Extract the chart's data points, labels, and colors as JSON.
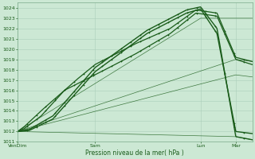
{
  "xlabel": "Pression niveau de la mer( hPa )",
  "ylim": [
    1011,
    1024.5
  ],
  "xtick_labels": [
    "VenDim",
    "Sam",
    "Lun",
    "Mar"
  ],
  "xtick_positions": [
    0.0,
    0.33,
    0.78,
    0.93
  ],
  "bg_color": "#cce8d4",
  "grid_color": "#aaceba",
  "line_color": "#1a5c1a",
  "line_color2": "#2d7a2d",
  "figsize": [
    3.2,
    2.0
  ],
  "dpi": 100,
  "lines_curved": [
    {
      "xk": [
        0.0,
        0.05,
        0.15,
        0.33,
        0.55,
        0.72,
        0.78,
        0.85,
        0.93,
        1.0
      ],
      "yk": [
        1012.0,
        1012.2,
        1013.5,
        1018.2,
        1021.8,
        1023.8,
        1024.1,
        1022.0,
        1011.5,
        1011.2
      ],
      "lw": 1.0,
      "marker": true
    },
    {
      "xk": [
        0.0,
        0.05,
        0.15,
        0.33,
        0.55,
        0.72,
        0.78,
        0.85,
        0.93,
        1.0
      ],
      "yk": [
        1012.0,
        1012.1,
        1013.2,
        1017.8,
        1021.5,
        1023.5,
        1023.9,
        1021.5,
        1012.0,
        1011.8
      ],
      "lw": 1.0,
      "marker": true
    },
    {
      "xk": [
        0.0,
        0.03,
        0.1,
        0.25,
        0.33,
        0.5,
        0.65,
        0.76,
        0.85,
        0.93,
        1.0
      ],
      "yk": [
        1012.0,
        1012.5,
        1014.0,
        1017.0,
        1018.5,
        1020.5,
        1022.0,
        1023.8,
        1023.5,
        1019.2,
        1018.8
      ],
      "lw": 0.9,
      "marker": true
    },
    {
      "xk": [
        0.0,
        0.03,
        0.1,
        0.2,
        0.33,
        0.5,
        0.65,
        0.76,
        0.85,
        0.93,
        1.0
      ],
      "yk": [
        1012.0,
        1012.3,
        1013.5,
        1016.0,
        1017.5,
        1019.5,
        1021.5,
        1023.5,
        1023.2,
        1019.0,
        1018.5
      ],
      "lw": 0.9,
      "marker": true
    }
  ],
  "lines_straight": [
    {
      "xk": [
        0.0,
        0.78,
        1.0
      ],
      "yk": [
        1012.0,
        1023.0,
        1023.0
      ],
      "lw": 0.5
    },
    {
      "xk": [
        0.0,
        0.93,
        1.0
      ],
      "yk": [
        1012.0,
        1019.0,
        1018.8
      ],
      "lw": 0.5
    },
    {
      "xk": [
        0.0,
        0.93,
        1.0
      ],
      "yk": [
        1012.0,
        1017.5,
        1017.3
      ],
      "lw": 0.5
    },
    {
      "xk": [
        0.0,
        0.93,
        1.0
      ],
      "yk": [
        1012.0,
        1011.5,
        1011.2
      ],
      "lw": 0.5
    }
  ]
}
